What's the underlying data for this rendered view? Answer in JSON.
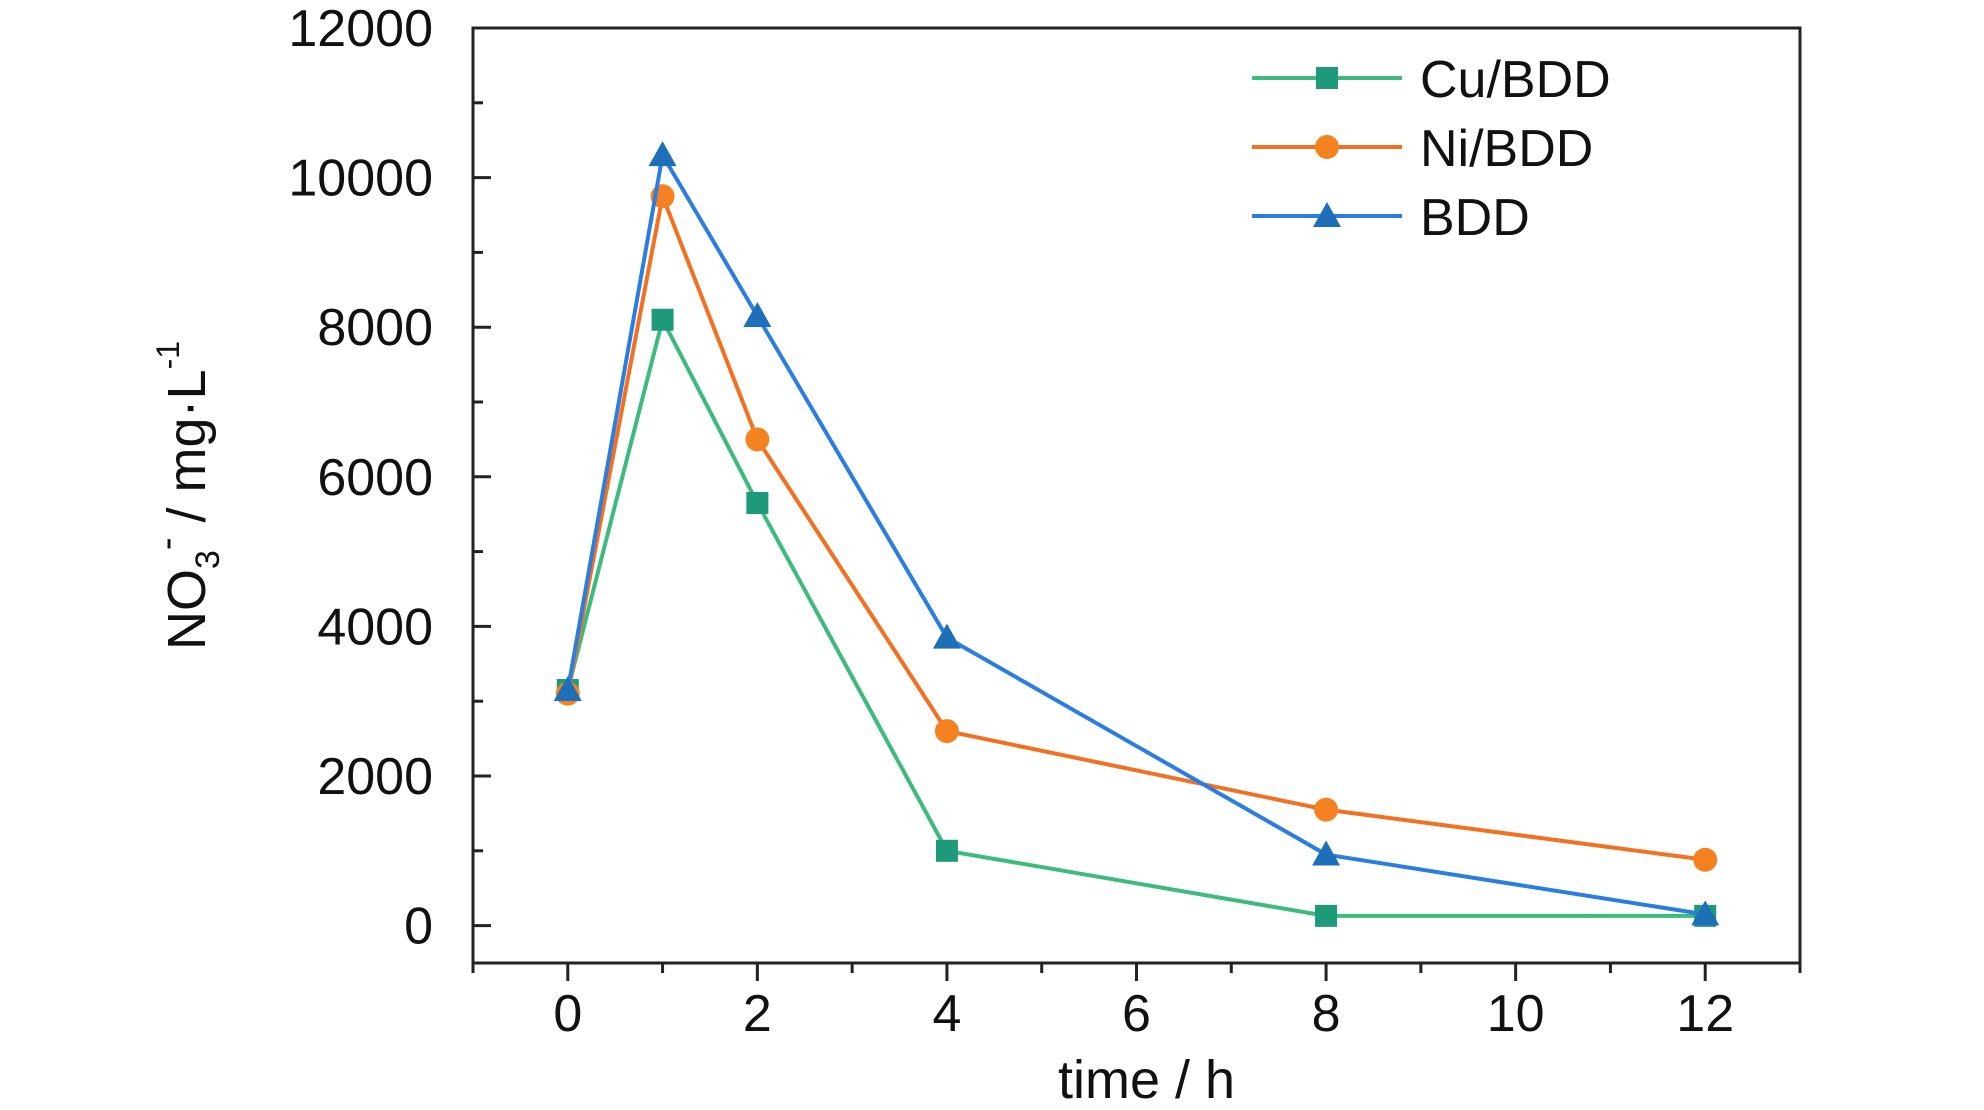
{
  "chart_data": {
    "type": "line",
    "xlabel": "time / h",
    "ylabel": {
      "main": "NO",
      "sub": "3",
      "sup": "-",
      "rest": " / mg·L",
      "unit_sup": "-1"
    },
    "xlim": [
      -1,
      13
    ],
    "ylim": [
      -500,
      12000
    ],
    "x_ticks": [
      0,
      2,
      4,
      6,
      8,
      10,
      12
    ],
    "x_tick_labels": [
      "0",
      "2",
      "4",
      "6",
      "8",
      "10",
      "12"
    ],
    "y_ticks": [
      0,
      2000,
      4000,
      6000,
      8000,
      10000,
      12000
    ],
    "y_tick_labels": [
      "0",
      "2000",
      "4000",
      "6000",
      "8000",
      "10000",
      "12000"
    ],
    "grid": false,
    "legend_placement": "top-right",
    "x": [
      0,
      1,
      2,
      4,
      8,
      12
    ],
    "series": [
      {
        "name": "Cu/BDD",
        "marker": "square",
        "color": "#1e9a7a",
        "line_color": "#3dbb7c",
        "values": [
          3150,
          8100,
          5650,
          1000,
          130,
          130
        ]
      },
      {
        "name": "Ni/BDD",
        "marker": "circle",
        "color": "#f58220",
        "line_color": "#f37021",
        "values": [
          3100,
          9750,
          6500,
          2600,
          1550,
          880
        ]
      },
      {
        "name": "BDD",
        "marker": "triangle",
        "color": "#1f6eb8",
        "line_color": "#2a7de1",
        "values": [
          3150,
          10300,
          8150,
          3850,
          950,
          150
        ]
      }
    ]
  }
}
